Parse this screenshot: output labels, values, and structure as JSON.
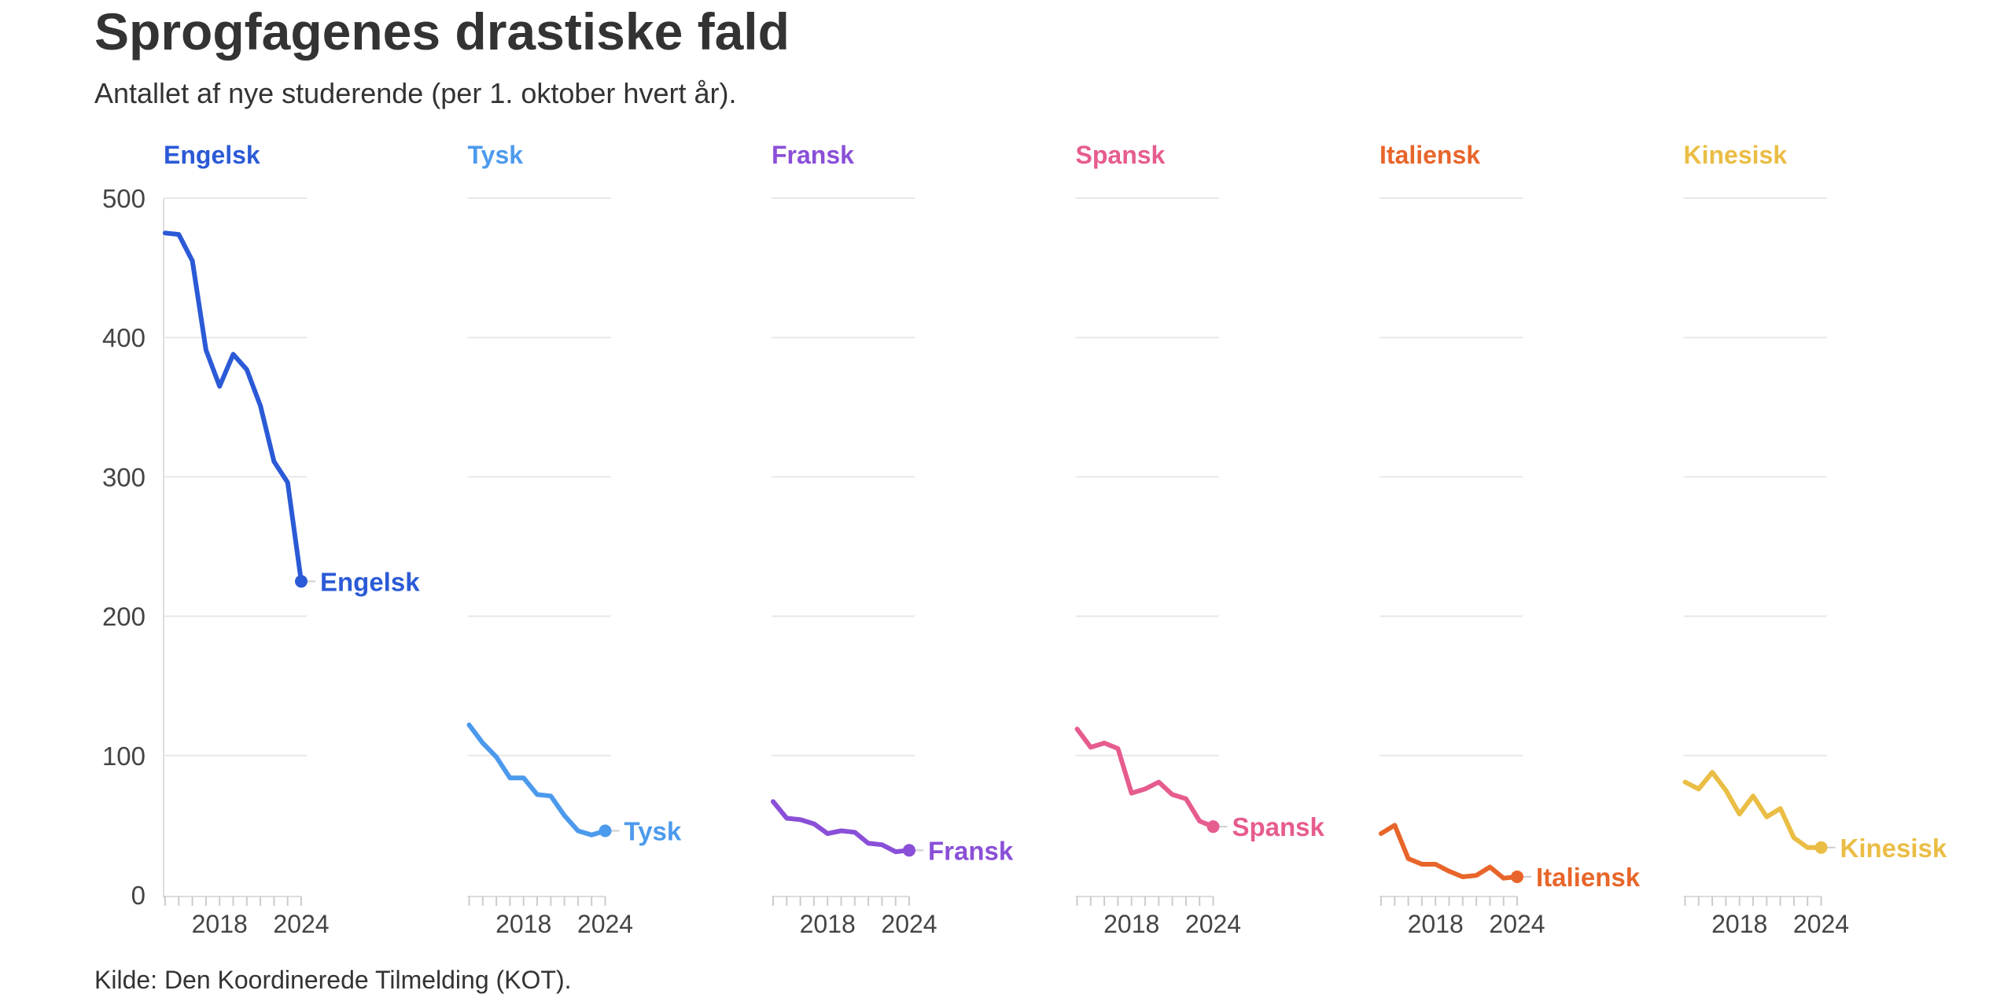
{
  "title": "Sprogfagenes drastiske fald",
  "subtitle": "Antallet af nye studerende (per 1. oktober hvert år).",
  "source": "Kilde: Den Koordinerede Tilmelding (KOT).",
  "chart_data": {
    "type": "line",
    "layout": "small-multiples",
    "ylim": [
      0,
      500
    ],
    "yticks": [
      0,
      100,
      200,
      300,
      400,
      500
    ],
    "xlim": [
      2014,
      2024
    ],
    "xticks": [
      2018,
      2024
    ],
    "grid": true,
    "x": [
      2014,
      2015,
      2016,
      2017,
      2018,
      2019,
      2020,
      2021,
      2022,
      2023,
      2024
    ],
    "series": [
      {
        "name": "Engelsk",
        "color": "#2b5ad6",
        "values": [
          475,
          474,
          455,
          391,
          365,
          388,
          377,
          351,
          311,
          296,
          225
        ]
      },
      {
        "name": "Tysk",
        "color": "#4c9aed",
        "values": [
          122,
          109,
          99,
          84,
          84,
          72,
          71,
          57,
          46,
          43,
          46
        ]
      },
      {
        "name": "Fransk",
        "color": "#8a4fd8",
        "values": [
          67,
          55,
          54,
          51,
          44,
          46,
          45,
          37,
          36,
          31,
          32
        ]
      },
      {
        "name": "Spansk",
        "color": "#e65c8f",
        "values": [
          119,
          106,
          109,
          105,
          73,
          76,
          81,
          72,
          69,
          53,
          49
        ]
      },
      {
        "name": "Italiensk",
        "color": "#e8652a",
        "values": [
          44,
          50,
          26,
          22,
          22,
          17,
          13,
          14,
          20,
          12,
          13
        ]
      },
      {
        "name": "Kinesisk",
        "color": "#eabd45",
        "values": [
          81,
          76,
          88,
          75,
          58,
          71,
          56,
          62,
          41,
          34,
          34
        ]
      }
    ]
  }
}
